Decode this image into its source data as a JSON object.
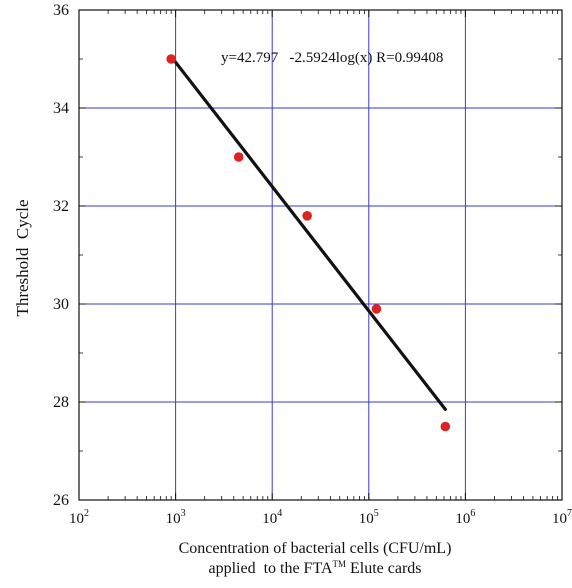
{
  "chart_data": {
    "type": "scatter",
    "title": "",
    "xlabel_line1": "Concentration of bacterial cells (CFU/mL)",
    "xlabel_line2": "applied  to the FTA",
    "xlabel_tm": "TM",
    "xlabel_line2_end": " Elute cards",
    "ylabel": "Threshold  Cycle",
    "xscale": "log",
    "xlim": [
      100,
      10000000
    ],
    "ylim": [
      26,
      36
    ],
    "xticks": [
      100,
      1000,
      10000,
      100000,
      1000000,
      10000000
    ],
    "xtick_bases": [
      "10",
      "10",
      "10",
      "10",
      "10",
      "10"
    ],
    "xtick_exponents": [
      "2",
      "3",
      "4",
      "5",
      "6",
      "7"
    ],
    "yticks": [
      26,
      28,
      30,
      32,
      34,
      36
    ],
    "ytick_labels": [
      "26",
      "28",
      "30",
      "32",
      "34",
      "36"
    ],
    "grid": true,
    "series": [
      {
        "x": [
          900,
          4500,
          23000,
          120000,
          620000
        ],
        "y": [
          35.0,
          33.0,
          31.8,
          29.9,
          27.5
        ],
        "marker_color": "#dd2222"
      }
    ],
    "fit": {
      "x": [
        900,
        620000
      ],
      "y": [
        35.05,
        27.85
      ],
      "color": "#111111"
    },
    "annotation": "y=42.797   -2.5924log(x) R=0.99408",
    "grid_color": "#3a3acc"
  }
}
